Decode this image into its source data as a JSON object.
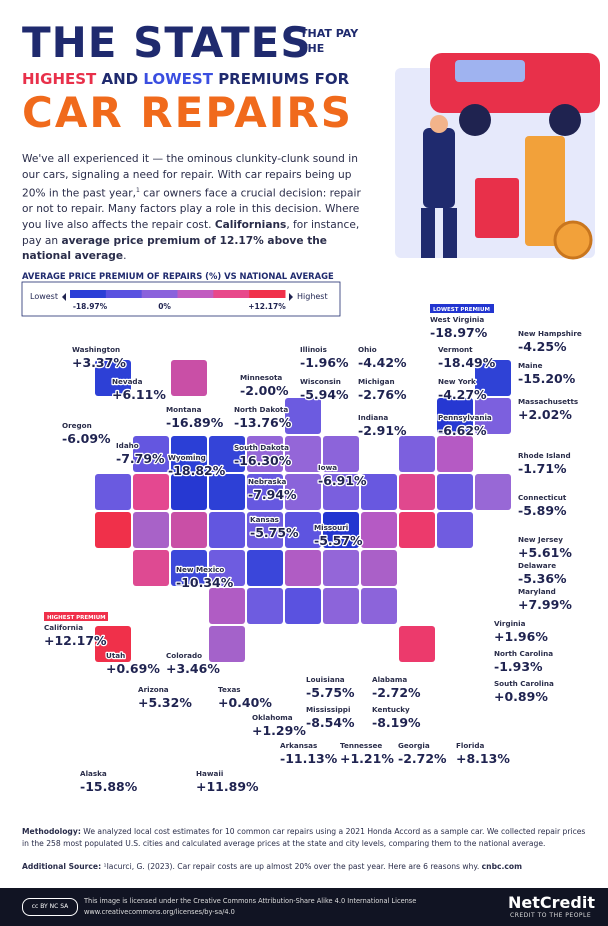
{
  "header": {
    "title_line1": "THE STATES",
    "title_small": "THAT PAY THE",
    "title_line2": [
      {
        "text": "HIGHEST",
        "style": "hi"
      },
      {
        "text": " AND ",
        "style": ""
      },
      {
        "text": "LOWEST",
        "style": "lo"
      },
      {
        "text": " PREMIUMS FOR",
        "style": ""
      }
    ],
    "title_line3": "CAR REPAIRS"
  },
  "intro": [
    {
      "text": "We've all experienced it — the ominous clunkity-clunk sound in our cars, signaling a need for repair. With car repairs being up 20% in the past year,",
      "bold": false
    },
    {
      "text": "1",
      "sup": true
    },
    {
      "text": " car owners face a crucial decision: repair or not to repair. Many factors play a role in this decision. Where you live also affects the repair cost. ",
      "bold": false
    },
    {
      "text": "Californians",
      "bold": true
    },
    {
      "text": ", for instance, pay an ",
      "bold": false
    },
    {
      "text": "average price premium of 12.17% above the national average",
      "bold": true
    },
    {
      "text": ".",
      "bold": false
    }
  ],
  "legend": {
    "title": "AVERAGE PRICE PREMIUM OF REPAIRS (%) VS NATIONAL AVERAGE",
    "low_text": "Lowest",
    "high_text": "Highest",
    "ticks": [
      "-18.97%",
      "0%",
      "+12.17%"
    ],
    "colors": [
      "#2b3fd6",
      "#5a52e0",
      "#8a62dc",
      "#c15cc0",
      "#e8488a",
      "#f0304a"
    ]
  },
  "states": [
    {
      "name": "Washington",
      "value": "+3.37%",
      "color": "#c94fa6"
    },
    {
      "name": "Nevada",
      "value": "+6.11%",
      "color": "#e44890"
    },
    {
      "name": "Oregon",
      "value": "-6.09%",
      "color": "#6a5ae0"
    },
    {
      "name": "Idaho",
      "value": "-7.79%",
      "color": "#6456e0"
    },
    {
      "name": "Montana",
      "value": "-16.89%",
      "color": "#2b3fd6"
    },
    {
      "name": "Wyoming",
      "value": "-18.82%",
      "color": "#2638d2"
    },
    {
      "name": "North Dakota",
      "value": "-13.76%",
      "color": "#3444d8"
    },
    {
      "name": "South Dakota",
      "value": "-16.30%",
      "color": "#2d40d6"
    },
    {
      "name": "Minnesota",
      "value": "-2.00%",
      "color": "#9466d8"
    },
    {
      "name": "Illinois",
      "value": "-1.96%",
      "color": "#9466d8"
    },
    {
      "name": "Wisconsin",
      "value": "-5.94%",
      "color": "#6c5be0"
    },
    {
      "name": "Ohio",
      "value": "-4.42%",
      "color": "#7a5fde"
    },
    {
      "name": "Michigan",
      "value": "-2.76%",
      "color": "#8c64da"
    },
    {
      "name": "Indiana",
      "value": "-2.91%",
      "color": "#8a64da"
    },
    {
      "name": "Vermont",
      "value": "-18.49%",
      "color": "#2638d2"
    },
    {
      "name": "New Hampshire",
      "value": "-4.25%",
      "color": "#7c60de"
    },
    {
      "name": "Maine",
      "value": "-15.20%",
      "color": "#2f42d6"
    },
    {
      "name": "New York",
      "value": "-4.27%",
      "color": "#7c60de"
    },
    {
      "name": "Massachusetts",
      "value": "+2.02%",
      "color": "#b55ac4"
    },
    {
      "name": "Pennsylvania",
      "value": "-6.62%",
      "color": "#6858e0"
    },
    {
      "name": "Rhode Island",
      "value": "-1.71%",
      "color": "#9868d6"
    },
    {
      "name": "Connecticut",
      "value": "-5.89%",
      "color": "#6c5be0"
    },
    {
      "name": "New Jersey",
      "value": "+5.61%",
      "color": "#e0488e"
    },
    {
      "name": "Delaware",
      "value": "-5.36%",
      "color": "#705ce0"
    },
    {
      "name": "Maryland",
      "value": "+7.99%",
      "color": "#ec3a6c"
    },
    {
      "name": "Iowa",
      "value": "-6.91%",
      "color": "#6658e0"
    },
    {
      "name": "Nebraska",
      "value": "-7.94%",
      "color": "#6256e0"
    },
    {
      "name": "Kansas",
      "value": "-5.75%",
      "color": "#6e5ce0"
    },
    {
      "name": "Missouri",
      "value": "-5.57%",
      "color": "#6e5ce0"
    },
    {
      "name": "New Mexico",
      "value": "-10.34%",
      "color": "#3c48da"
    },
    {
      "name": "California",
      "value": "+12.17%",
      "color": "#f0304a",
      "badge": "HIGHEST PREMIUM"
    },
    {
      "name": "Utah",
      "value": "+0.69%",
      "color": "#a862c8"
    },
    {
      "name": "Colorado",
      "value": "+3.46%",
      "color": "#c94fa6"
    },
    {
      "name": "Arizona",
      "value": "+5.32%",
      "color": "#de4a92"
    },
    {
      "name": "Texas",
      "value": "+0.40%",
      "color": "#a462ca"
    },
    {
      "name": "Oklahoma",
      "value": "+1.29%",
      "color": "#b05cc4"
    },
    {
      "name": "Arkansas",
      "value": "-11.13%",
      "color": "#3a46da"
    },
    {
      "name": "Louisiana",
      "value": "-5.75%",
      "color": "#6e5ce0"
    },
    {
      "name": "Mississippi",
      "value": "-8.54%",
      "color": "#5a52e0"
    },
    {
      "name": "Alabama",
      "value": "-2.72%",
      "color": "#8c64da"
    },
    {
      "name": "Kentucky",
      "value": "-8.19%",
      "color": "#5e54e0"
    },
    {
      "name": "Tennessee",
      "value": "+1.21%",
      "color": "#b05cc4"
    },
    {
      "name": "Georgia",
      "value": "-2.72%",
      "color": "#8c64da"
    },
    {
      "name": "Florida",
      "value": "+8.13%",
      "color": "#ec3a6c"
    },
    {
      "name": "Virginia",
      "value": "+1.96%",
      "color": "#b55ac4"
    },
    {
      "name": "North Carolina",
      "value": "-1.93%",
      "color": "#9466d8"
    },
    {
      "name": "South Carolina",
      "value": "+0.89%",
      "color": "#aa60c8"
    },
    {
      "name": "Alaska",
      "value": "-15.88%",
      "color": "#2d40d6"
    },
    {
      "name": "Hawaii",
      "value": "+11.89%",
      "color": "#f0304a"
    },
    {
      "name": "West Virginia",
      "value": "-18.97%",
      "color": "#2235d0",
      "badge": "LOWEST PREMIUM"
    }
  ],
  "methodology": {
    "label": "Methodology:",
    "text": " We analyzed local cost estimates for 10 common car repairs using a 2021 Honda Accord as a sample car. We collected repair prices in the 258 most populated U.S. cities and calculated average prices at the state and city levels, comparing them to the national average."
  },
  "source": {
    "label": "Additional Source:",
    "text": " ¹Iacurci, G. (2023). Car repair costs are up almost 20% over the past year. Here are 6 reasons why. ",
    "link": "cnbc.com"
  },
  "footer": {
    "license": "This image is licensed under the Creative Commons Attribution-Share Alike 4.0 International License",
    "url": "www.creativecommons.org/licenses/by-sa/4.0",
    "cc": "cc BY NC SA",
    "brand": "NetCredit",
    "tagline": "CREDIT TO THE PEOPLE"
  }
}
